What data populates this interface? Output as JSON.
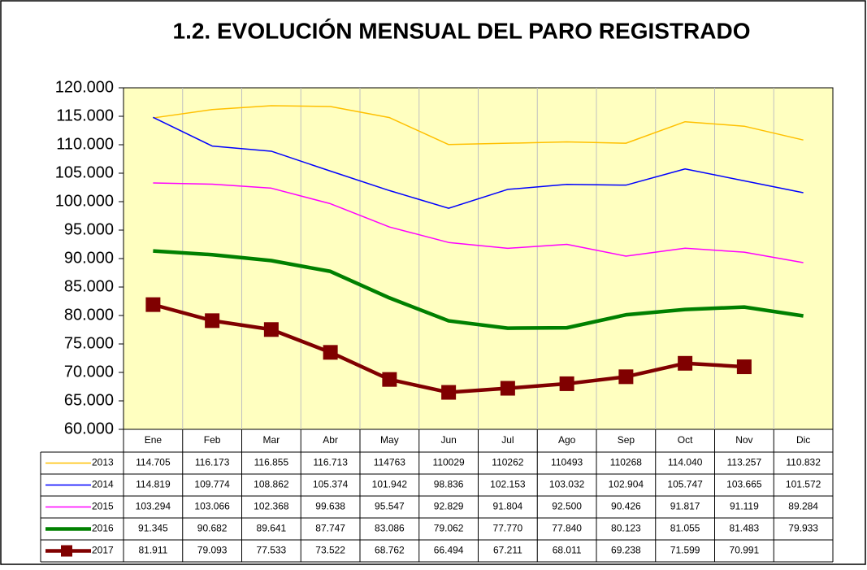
{
  "chart_data": {
    "type": "line",
    "title": "1.2. EVOLUCIÓN MENSUAL DEL PARO REGISTRADO",
    "categories": [
      "Ene",
      "Feb",
      "Mar",
      "Abr",
      "May",
      "Jun",
      "Jul",
      "Ago",
      "Sep",
      "Oct",
      "Nov",
      "Dic"
    ],
    "ylim": [
      60000,
      120000
    ],
    "yticks": [
      {
        "value": 60000,
        "label": "60.000"
      },
      {
        "value": 65000,
        "label": "65.000"
      },
      {
        "value": 70000,
        "label": "70.000"
      },
      {
        "value": 75000,
        "label": "75.000"
      },
      {
        "value": 80000,
        "label": "80.000"
      },
      {
        "value": 85000,
        "label": "85.000"
      },
      {
        "value": 90000,
        "label": "90.000"
      },
      {
        "value": 95000,
        "label": "95.000"
      },
      {
        "value": 100000,
        "label": "100.000"
      },
      {
        "value": 105000,
        "label": "105.000"
      },
      {
        "value": 110000,
        "label": "110.000"
      },
      {
        "value": 115000,
        "label": "115.000"
      },
      {
        "value": 120000,
        "label": "120.000"
      }
    ],
    "grid": true,
    "series": [
      {
        "name": "2013",
        "color": "#ffc000",
        "width": 1.5,
        "marker": false,
        "values": [
          114705,
          116173,
          116855,
          116713,
          114763,
          110029,
          110262,
          110493,
          110268,
          114040,
          113257,
          110832
        ],
        "value_labels": [
          "114.705",
          "116.173",
          "116.855",
          "116.713",
          "114763",
          "110029",
          "110262",
          "110493",
          "110268",
          "114.040",
          "113.257",
          "110.832"
        ]
      },
      {
        "name": "2014",
        "color": "#0000ff",
        "width": 1.5,
        "marker": false,
        "values": [
          114819,
          109774,
          108862,
          105374,
          101942,
          98836,
          102153,
          103032,
          102904,
          105747,
          103665,
          101572
        ],
        "value_labels": [
          "114.819",
          "109.774",
          "108.862",
          "105.374",
          "101.942",
          "98.836",
          "102.153",
          "103.032",
          "102.904",
          "105.747",
          "103.665",
          "101.572"
        ]
      },
      {
        "name": "2015",
        "color": "#ff00ff",
        "width": 1.5,
        "marker": false,
        "values": [
          103294,
          103066,
          102368,
          99638,
          95547,
          92829,
          91804,
          92500,
          90426,
          91817,
          91119,
          89284
        ],
        "value_labels": [
          "103.294",
          "103.066",
          "102.368",
          "99.638",
          "95.547",
          "92.829",
          "91.804",
          "92.500",
          "90.426",
          "91.817",
          "91.119",
          "89.284"
        ]
      },
      {
        "name": "2016",
        "color": "#008000",
        "width": 4.5,
        "marker": false,
        "values": [
          91345,
          90682,
          89641,
          87747,
          83086,
          79062,
          77770,
          77840,
          80123,
          81055,
          81483,
          79933
        ],
        "value_labels": [
          "91.345",
          "90.682",
          "89.641",
          "87.747",
          "83.086",
          "79.062",
          "77.770",
          "77.840",
          "80.123",
          "81.055",
          "81.483",
          "79.933"
        ]
      },
      {
        "name": "2017",
        "color": "#800000",
        "width": 4.5,
        "marker": true,
        "values": [
          81911,
          79093,
          77533,
          73522,
          68762,
          66494,
          67211,
          68011,
          69238,
          71599,
          70991,
          null
        ],
        "value_labels": [
          "81.911",
          "79.093",
          "77.533",
          "73.522",
          "68.762",
          "66.494",
          "67.211",
          "68.011",
          "69.238",
          "71.599",
          "70.991",
          null
        ]
      }
    ]
  }
}
